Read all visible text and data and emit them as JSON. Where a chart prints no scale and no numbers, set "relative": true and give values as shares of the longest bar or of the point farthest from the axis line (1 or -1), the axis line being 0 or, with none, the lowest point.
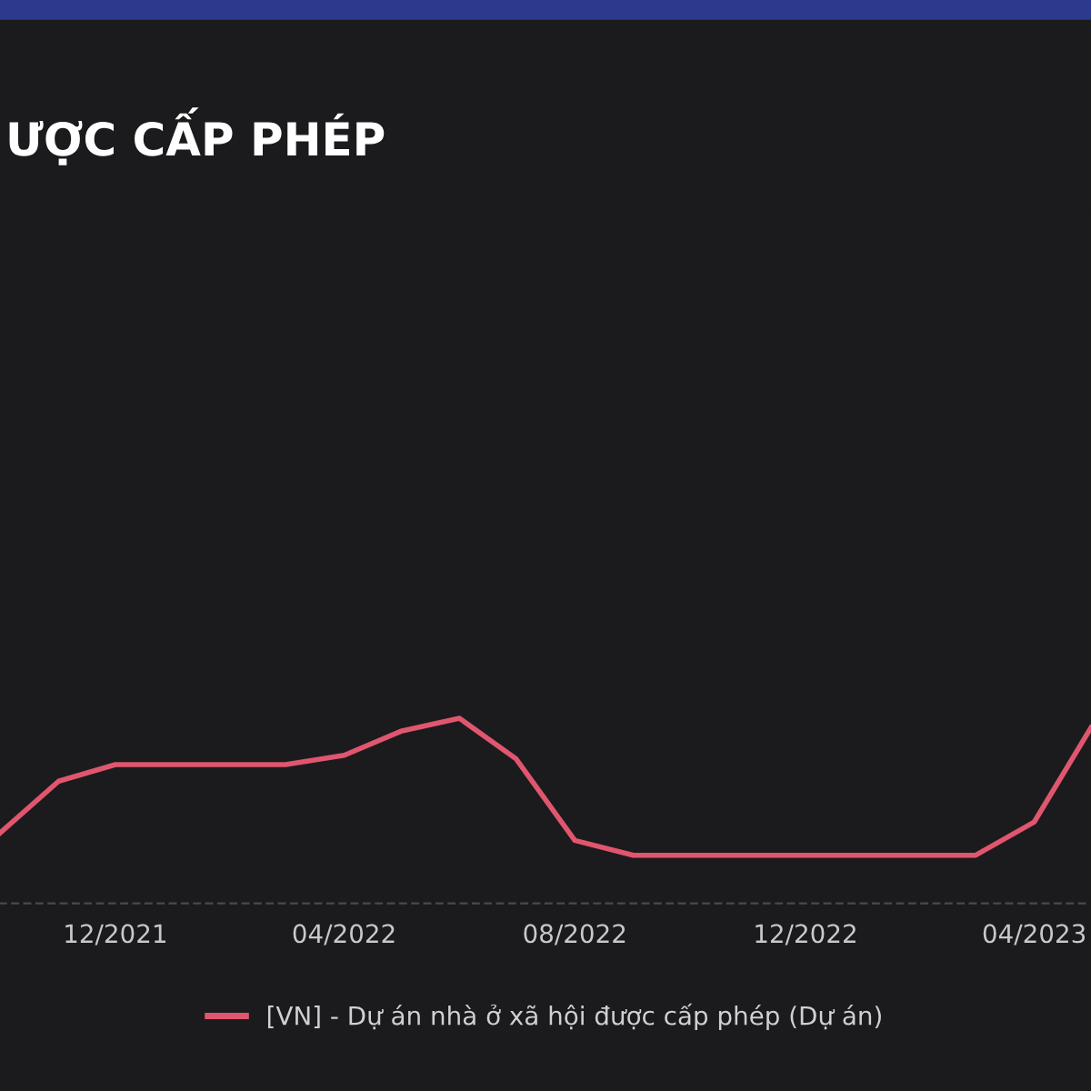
{
  "chart_data": {
    "type": "line",
    "title": "ƯỢC CẤP PHÉP",
    "relative": true,
    "x": [
      "2021-10",
      "2021-11",
      "2021-12",
      "2022-01",
      "2022-02",
      "2022-03",
      "2022-04",
      "2022-05",
      "2022-06",
      "2022-07",
      "2022-08",
      "2022-09",
      "2022-10",
      "2022-11",
      "2022-12",
      "2023-01",
      "2023-02",
      "2023-03",
      "2023-04",
      "2023-05"
    ],
    "series": [
      {
        "name": "[VN] - Dự án nhà ở xã hội được cấp phép (Dự án)",
        "color": "#e0566e",
        "values": [
          0.38,
          0.66,
          0.75,
          0.75,
          0.75,
          0.75,
          0.8,
          0.93,
          1.0,
          0.78,
          0.34,
          0.26,
          0.26,
          0.26,
          0.26,
          0.26,
          0.26,
          0.26,
          0.44,
          0.95
        ]
      }
    ],
    "xlim": [
      "2021-10-01",
      "2023-05-01"
    ],
    "xticks": [
      {
        "value": "2021-12-01",
        "label": "12/2021"
      },
      {
        "value": "2022-04-01",
        "label": "04/2022"
      },
      {
        "value": "2022-08-01",
        "label": "08/2022"
      },
      {
        "value": "2022-12-01",
        "label": "12/2022"
      },
      {
        "value": "2023-04-01",
        "label": "04/2023"
      }
    ],
    "legend": "bottom",
    "line_style": "solid",
    "marker": "none"
  }
}
